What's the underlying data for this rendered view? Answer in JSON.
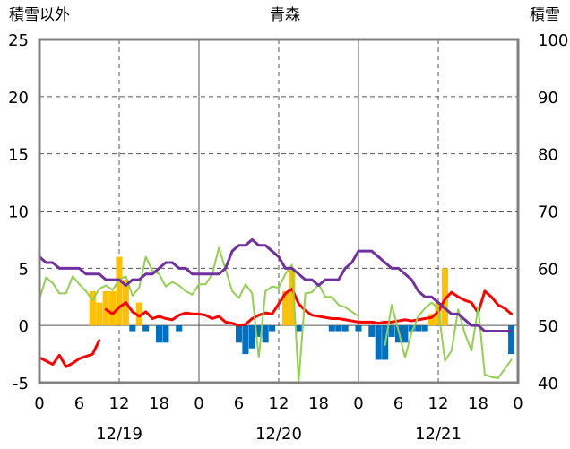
{
  "chart_data": {
    "type": "bar",
    "title": "青森",
    "ylabel_left": "積雪以外",
    "ylabel_right": "積雪",
    "left_axis": {
      "range": [
        -5,
        25
      ],
      "ticks": [
        -5,
        0,
        5,
        10,
        15,
        20,
        25
      ]
    },
    "right_axis": {
      "range": [
        40,
        100
      ],
      "ticks": [
        40,
        50,
        60,
        70,
        80,
        90,
        100
      ]
    },
    "x_axis": {
      "range": [
        0,
        72
      ],
      "ticks": [
        0,
        6,
        12,
        18,
        24,
        30,
        36,
        42,
        48,
        54,
        60,
        66,
        72
      ],
      "tick_labels": [
        "0",
        "6",
        "12",
        "18",
        "0",
        "6",
        "12",
        "18",
        "0",
        "6",
        "12",
        "18",
        "0"
      ],
      "day_labels": [
        {
          "x": 12,
          "label": "12/19"
        },
        {
          "x": 36,
          "label": "12/20"
        },
        {
          "x": 60,
          "label": "12/21"
        }
      ],
      "major_gridlines": [
        24,
        48
      ],
      "minor_gridlines": [
        12,
        36,
        60
      ]
    },
    "grid": true,
    "colors": {
      "snowfall": "#FFC000",
      "precipitation": "#0070C0",
      "temperature": "#FF0000",
      "snow_depth": "#7030A0",
      "green_series": "#92D050",
      "grid": "#555555",
      "frame": "#808080"
    },
    "series": [
      {
        "kind": "bar",
        "axis": "left",
        "color": "#FFC000",
        "x": [
          8,
          9,
          10,
          11,
          12,
          13,
          15,
          37,
          38,
          59,
          60,
          61
        ],
        "values": [
          3,
          2,
          3,
          3,
          6,
          4,
          2,
          3,
          5,
          1,
          2,
          5
        ]
      },
      {
        "kind": "bar",
        "axis": "left",
        "color": "#0070C0",
        "x": [
          14,
          16,
          18,
          19,
          21,
          30,
          31,
          32,
          33,
          34,
          35,
          39,
          44,
          45,
          46,
          48,
          50,
          51,
          52,
          53,
          54,
          55,
          56,
          57,
          58,
          71
        ],
        "values": [
          -0.5,
          -0.5,
          -1.5,
          -1.5,
          -0.5,
          -1.5,
          -2.5,
          -2,
          -1,
          -1.5,
          -0.5,
          -0.5,
          -0.5,
          -0.5,
          -0.5,
          -0.5,
          -1,
          -3,
          -3,
          -1,
          -1.5,
          -1.5,
          -0.5,
          -0.5,
          -0.5,
          -2.5
        ]
      },
      {
        "kind": "line",
        "axis": "left",
        "color": "#FF0000",
        "x": [
          0,
          1,
          2,
          3,
          4,
          5,
          6,
          7,
          8,
          9,
          10
        ],
        "values": [
          -2.8,
          -3.1,
          -3.4,
          -2.6,
          -3.6,
          -3.3,
          -2.9,
          -2.7,
          -2.5,
          -1.3,
          null
        ]
      },
      {
        "kind": "line",
        "axis": "left",
        "color": "#FF0000",
        "x": [
          10,
          11,
          12,
          13,
          14,
          15,
          16,
          17,
          18,
          19,
          20,
          21,
          22,
          23,
          24,
          25,
          26,
          27,
          28,
          29,
          30,
          31,
          32,
          33,
          34,
          35,
          36,
          37,
          38,
          39,
          40,
          41,
          42,
          43,
          44,
          45,
          46,
          47,
          48,
          49,
          50,
          51,
          52,
          53,
          54,
          55,
          56,
          57,
          58,
          59,
          60,
          61,
          62,
          63,
          64,
          65,
          66,
          67,
          68,
          69,
          70,
          71
        ],
        "values": [
          1.4,
          1.0,
          1.6,
          2.0,
          1.2,
          0.8,
          1.2,
          0.6,
          0.8,
          0.6,
          0.5,
          0.9,
          1.1,
          1.0,
          1.0,
          0.9,
          0.6,
          0.8,
          0.3,
          0.2,
          0.0,
          0.1,
          0.6,
          0.9,
          1.1,
          1.0,
          1.9,
          2.8,
          3.2,
          1.9,
          1.3,
          0.9,
          0.8,
          0.7,
          0.6,
          0.6,
          0.5,
          0.4,
          0.3,
          0.3,
          0.3,
          0.2,
          0.3,
          0.3,
          0.4,
          0.5,
          0.4,
          0.5,
          0.6,
          0.7,
          1.2,
          2.3,
          2.9,
          2.5,
          2.2,
          2.0,
          1.1,
          3.0,
          2.5,
          1.8,
          1.5,
          1.0
        ]
      },
      {
        "kind": "line",
        "axis": "left",
        "color": "#92D050",
        "x": [
          0,
          1,
          2,
          3,
          4,
          5,
          6,
          7,
          8,
          9,
          10,
          11,
          12,
          13,
          14,
          15,
          16,
          17,
          18,
          19,
          20,
          21,
          22,
          23,
          24,
          25,
          26,
          27,
          28,
          29,
          30,
          31,
          32,
          33,
          34,
          35,
          36,
          37,
          38,
          39,
          40,
          41,
          42,
          43,
          44,
          45,
          46,
          47,
          48
        ],
        "values": [
          2.3,
          4.2,
          3.7,
          2.8,
          2.8,
          4.3,
          3.6,
          3.0,
          2.2,
          3.2,
          3.5,
          3.1,
          4.0,
          4.3,
          2.6,
          3.3,
          6.0,
          4.8,
          4.5,
          3.4,
          3.8,
          3.5,
          3.0,
          2.7,
          3.6,
          3.6,
          4.5,
          6.8,
          4.9,
          3.0,
          2.4,
          3.6,
          2.8,
          -2.8,
          3.0,
          3.4,
          3.3,
          4.5,
          5.3,
          -4.9,
          2.8,
          2.9,
          3.6,
          2.5,
          2.5,
          1.8,
          1.6,
          1.2,
          0.8
        ]
      },
      {
        "kind": "line",
        "axis": "left",
        "color": "#92D050",
        "x": [
          52,
          53,
          54,
          55,
          56,
          57,
          58,
          59,
          60,
          61,
          62,
          63,
          64,
          65,
          66,
          67,
          68,
          69,
          70,
          71
        ],
        "values": [
          -1.7,
          1.8,
          -0.4,
          -2.8,
          -0.6,
          0.8,
          1.5,
          2.0,
          1.5,
          -3.1,
          -2.2,
          1.4,
          -0.7,
          -2.2,
          1.6,
          -4.3,
          -4.5,
          -4.6,
          -3.8,
          -3.0
        ]
      },
      {
        "kind": "line",
        "axis": "right",
        "color": "#7030A0",
        "x": [
          0,
          1,
          2,
          3,
          4,
          5,
          6,
          7,
          8,
          9,
          10,
          11,
          12,
          13,
          14,
          15,
          16,
          17,
          18,
          19,
          20,
          21,
          22,
          23,
          24,
          25,
          26,
          27,
          28,
          29,
          30,
          31,
          32,
          33,
          34,
          35,
          36,
          37,
          38,
          39,
          40,
          41,
          42,
          43,
          44,
          45,
          46,
          47,
          48,
          49,
          50,
          51,
          52,
          53,
          54,
          55,
          56,
          57,
          58,
          59,
          60,
          61,
          62,
          63,
          64,
          65,
          66,
          67,
          68,
          69,
          70,
          71
        ],
        "values": [
          62,
          61,
          61,
          60,
          60,
          60,
          60,
          59,
          59,
          59,
          58,
          58,
          58,
          57,
          58,
          58,
          59,
          59,
          60,
          61,
          61,
          60,
          60,
          59,
          59,
          59,
          59,
          59,
          60,
          63,
          64,
          64,
          65,
          64,
          64,
          63,
          62,
          60,
          60,
          59,
          58,
          58,
          57,
          58,
          58,
          58,
          60,
          61,
          63,
          63,
          63,
          62,
          61,
          60,
          60,
          59,
          58,
          56,
          55,
          55,
          54,
          53,
          52,
          52,
          51,
          50,
          50,
          49,
          49,
          49,
          49,
          49
        ]
      }
    ]
  }
}
